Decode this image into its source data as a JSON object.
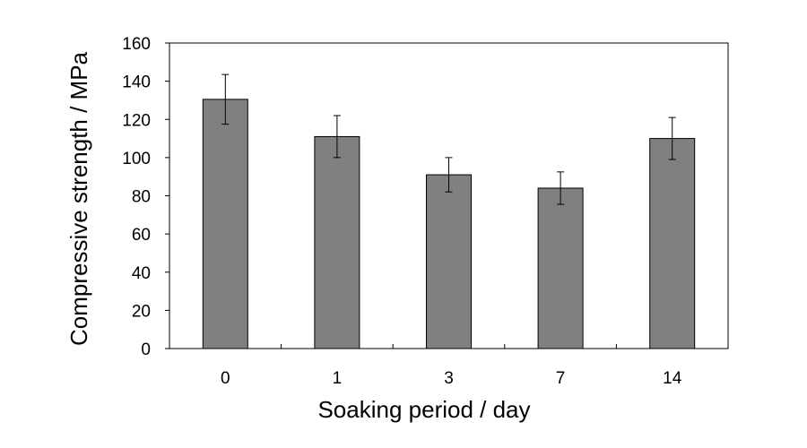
{
  "chart_data": {
    "type": "bar",
    "title": "",
    "xlabel": "Soaking period / day",
    "ylabel": "Compressive strength / MPa",
    "categories": [
      "0",
      "1",
      "3",
      "7",
      "14"
    ],
    "values": [
      130.5,
      111,
      91,
      84,
      110
    ],
    "error": [
      13,
      11,
      9,
      8.5,
      11
    ],
    "ylim": [
      0,
      160
    ],
    "yticks": [
      0,
      20,
      40,
      60,
      80,
      100,
      120,
      140,
      160
    ],
    "ytick_labels": [
      "0",
      "20",
      "40",
      "60",
      "80",
      "100",
      "120",
      "140",
      "160"
    ],
    "bar_color": "#808080",
    "grid": false,
    "legend": "none"
  }
}
